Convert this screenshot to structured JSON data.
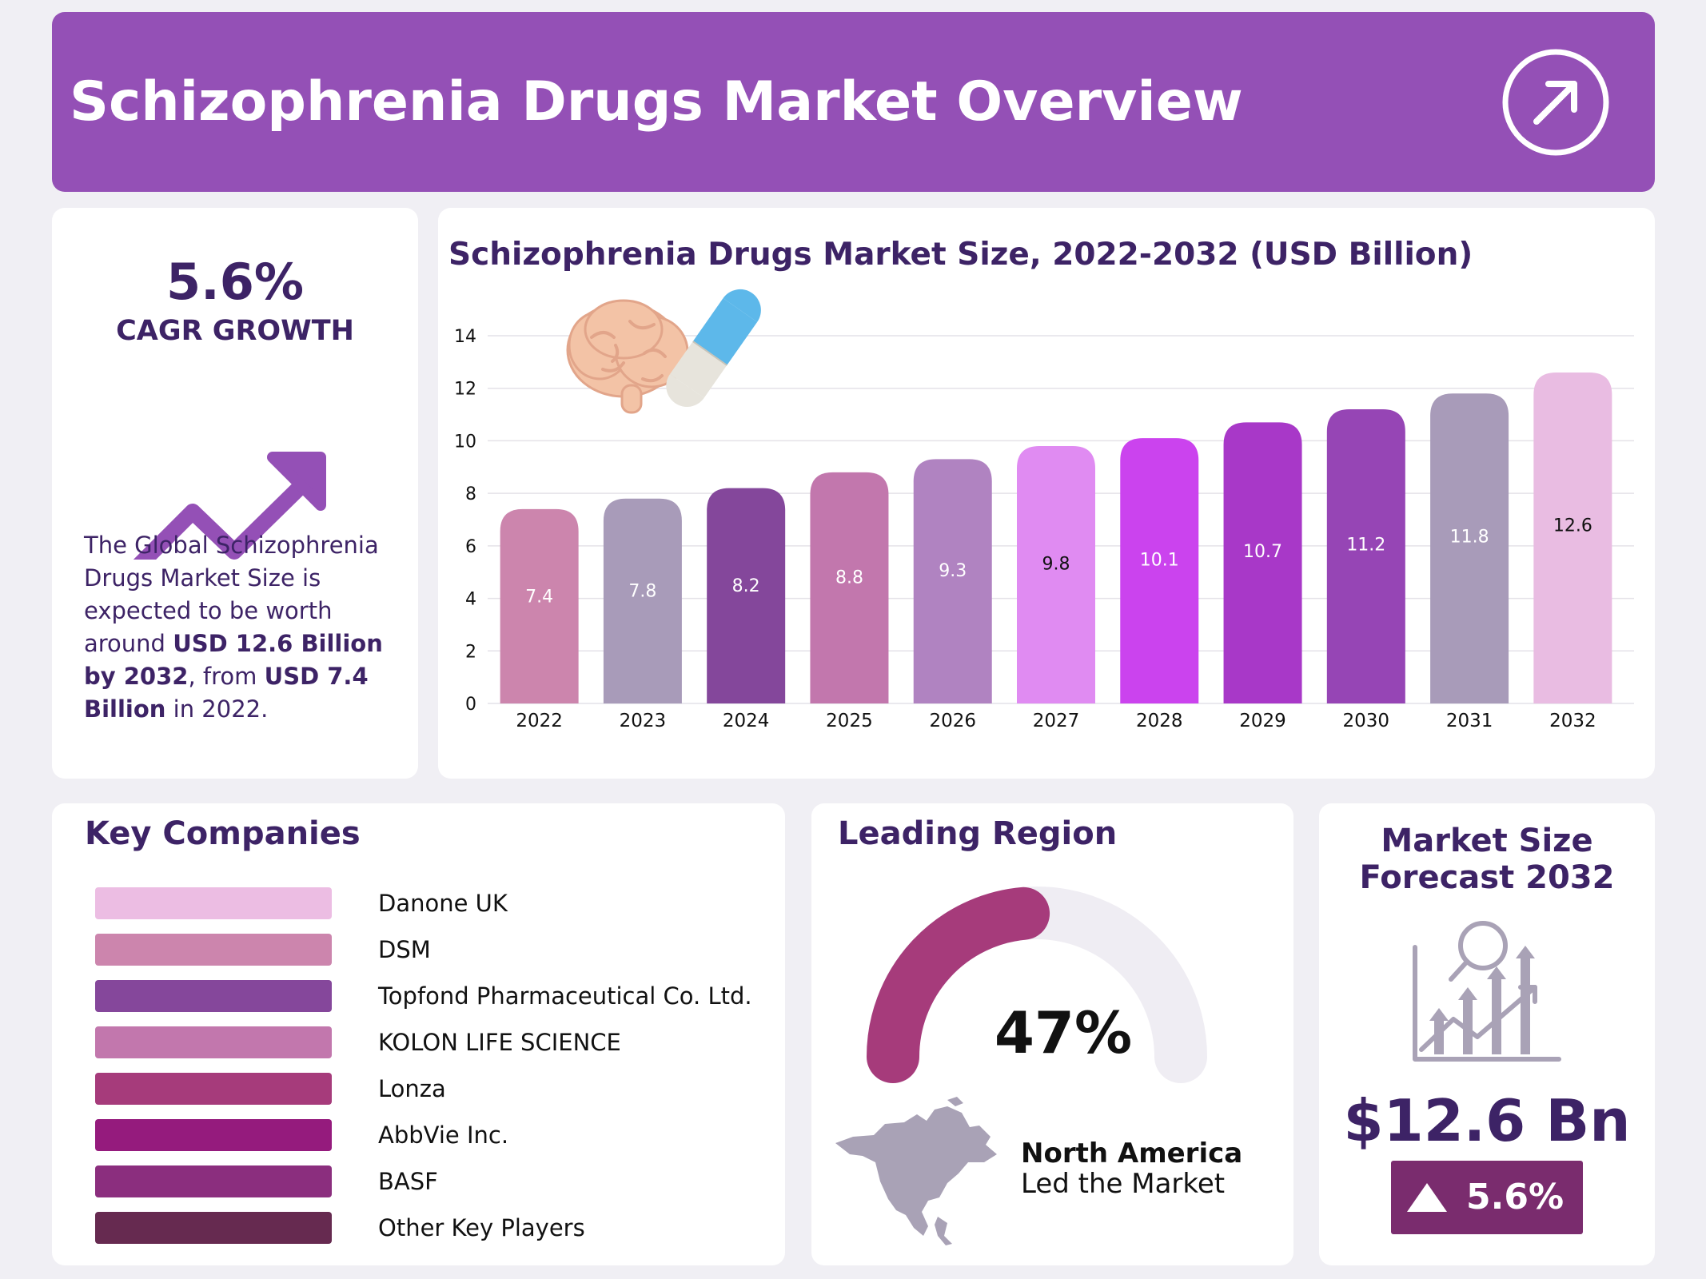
{
  "header": {
    "title": "Schizophrenia Drugs Market Overview"
  },
  "cagr": {
    "value": "5.6%",
    "label": "CAGR GROWTH",
    "desc_parts": [
      "The Global Schizophrenia Drugs Market Size is expected to be worth around ",
      "USD 12.6 Billion by 2032",
      ", from ",
      "USD 7.4 Billion",
      " in 2022."
    ]
  },
  "chart_data": {
    "type": "bar",
    "title": "Schizophrenia Drugs Market Size, 2022-2032 (USD Billion)",
    "categories": [
      "2022",
      "2023",
      "2024",
      "2025",
      "2026",
      "2027",
      "2028",
      "2029",
      "2030",
      "2031",
      "2032"
    ],
    "values": [
      7.4,
      7.8,
      8.2,
      8.8,
      9.3,
      9.8,
      10.1,
      10.7,
      11.2,
      11.8,
      12.6
    ],
    "value_labels": [
      "7.4",
      "7.8",
      "8.2",
      "8.8",
      "9.3",
      "9.8",
      "10.1",
      "10.7",
      "11.2",
      "11.8",
      "12.6"
    ],
    "colors": [
      "#cc85ad",
      "#a89bb9",
      "#84479b",
      "#c277ad",
      "#b083c1",
      "#e08bf2",
      "#cb43ee",
      "#a838c8",
      "#9645b5",
      "#a89bb9",
      "#e9bce2"
    ],
    "label_colors": [
      "#ffffff",
      "#ffffff",
      "#ffffff",
      "#ffffff",
      "#ffffff",
      "#111111",
      "#ffffff",
      "#ffffff",
      "#ffffff",
      "#ffffff",
      "#111111"
    ],
    "ylim": [
      0,
      14
    ],
    "yticks": [
      "0",
      "2",
      "4",
      "6",
      "8",
      "10",
      "12",
      "14"
    ],
    "grid": true,
    "xlabel": "",
    "ylabel": ""
  },
  "companies": {
    "title": "Key Companies",
    "items": [
      {
        "name": "Danone UK",
        "color": "#ecbde3"
      },
      {
        "name": "DSM",
        "color": "#cc85ad"
      },
      {
        "name": "Topfond Pharmaceutical Co. Ltd.",
        "color": "#85479b"
      },
      {
        "name": "KOLON LIFE SCIENCE",
        "color": "#c277ad"
      },
      {
        "name": "Lonza",
        "color": "#a63b7b"
      },
      {
        "name": "AbbVie Inc.",
        "color": "#951b7d"
      },
      {
        "name": "BASF",
        "color": "#8b2e7e"
      },
      {
        "name": "Other Key Players",
        "color": "#662a50"
      }
    ]
  },
  "region": {
    "title": "Leading Region",
    "percent": "47%",
    "share": 0.47,
    "name": "North America",
    "sub": "Led the Market",
    "gauge_color": "#a63b7b",
    "track_color": "#efedf3"
  },
  "forecast": {
    "title": "Market Size Forecast 2032",
    "value": "$12.6 Bn",
    "growth": "5.6%"
  }
}
